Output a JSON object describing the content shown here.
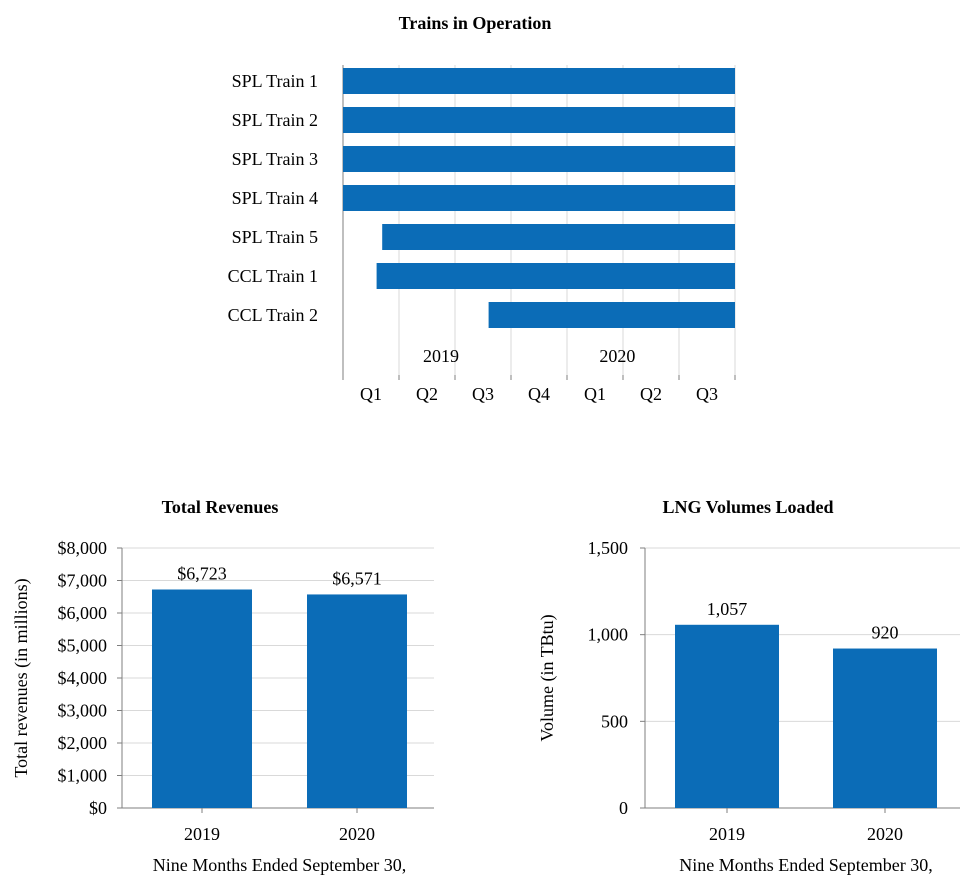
{
  "colors": {
    "bar": "#0b6cb7"
  },
  "chart_data": [
    {
      "type": "bar",
      "orientation": "horizontal-gantt",
      "title": "Trains in Operation",
      "categories": [
        "SPL Train 1",
        "SPL Train 2",
        "SPL Train 3",
        "SPL Train 4",
        "SPL Train 5",
        "CCL Train 1",
        "CCL Train 2"
      ],
      "start_quarter": [
        0,
        0,
        0,
        0,
        0.7,
        0.6,
        2.6
      ],
      "end_quarter": 7,
      "quarter_labels": [
        "Q1",
        "Q2",
        "Q3",
        "Q4",
        "Q1",
        "Q2",
        "Q3"
      ],
      "year_labels": [
        "2019",
        "2020"
      ],
      "grid": true
    },
    {
      "type": "bar",
      "title": "Total Revenues",
      "categories": [
        "2019",
        "2020"
      ],
      "values": [
        6723,
        6571
      ],
      "data_labels": [
        "$6,723",
        "$6,571"
      ],
      "ylabel": "Total revenues (in millions)",
      "xlabel": "Nine Months Ended September 30,",
      "ylim": [
        0,
        8000
      ],
      "yticks": [
        "$0",
        "$1,000",
        "$2,000",
        "$3,000",
        "$4,000",
        "$5,000",
        "$6,000",
        "$7,000",
        "$8,000"
      ],
      "grid": true
    },
    {
      "type": "bar",
      "title": "LNG Volumes Loaded",
      "categories": [
        "2019",
        "2020"
      ],
      "values": [
        1057,
        920
      ],
      "data_labels": [
        "1,057",
        "920"
      ],
      "ylabel": "Volume (in TBtu)",
      "xlabel": "Nine Months Ended September 30,",
      "ylim": [
        0,
        1500
      ],
      "yticks": [
        "0",
        "500",
        "1,000",
        "1,500"
      ],
      "grid": true
    }
  ]
}
